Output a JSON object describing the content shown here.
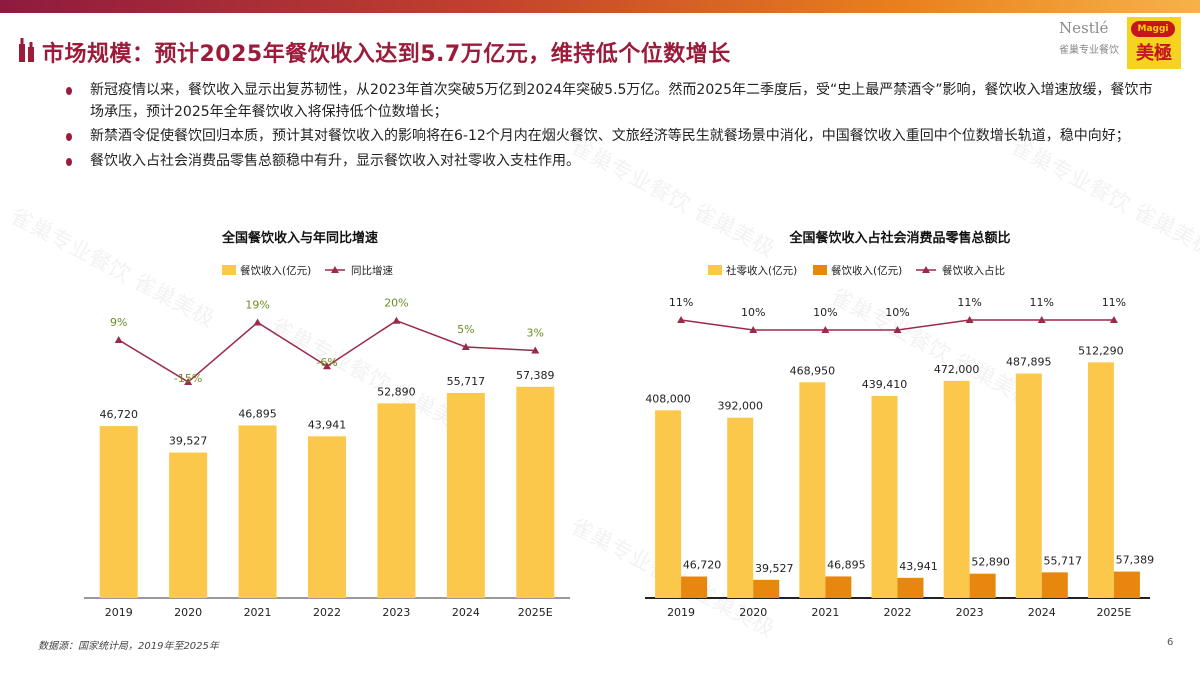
{
  "header": {
    "title": "市场规模：预计2025年餐饮收入达到5.7万亿元，维持低个位数增长",
    "logos": {
      "nestle": "Nestlé",
      "nestle_sub": "雀巢专业餐饮",
      "maggi": "Maggi",
      "maggi_cn": "美極"
    }
  },
  "bullets": [
    "新冠疫情以来，餐饮收入显示出复苏韧性，从2023年首次突破5万亿到2024年突破5.5万亿。然而2025年二季度后，受“史上最严禁酒令”影响，餐饮收入增速放缓，餐饮市场承压，预计2025年全年餐饮收入将保持低个位数增长；",
    "新禁酒令促使餐饮回归本质，预计其对餐饮收入的影响将在6-12个月内在烟火餐饮、文旅经济等民生就餐场景中消化，中国餐饮收入重回中个位数增长轨道，稳中向好；",
    "餐饮收入占社会消费品零售总额稳中有升，显示餐饮收入对社零收入支柱作用。"
  ],
  "watermark": "雀巢专业餐饮 雀巢美极",
  "footer": {
    "source": "数据源：国家统计局，2019年至2025年",
    "page": "6"
  },
  "colors": {
    "brand": "#9b1b3a",
    "bar_yellow": "#fcc84c",
    "bar_orange": "#e8870e",
    "line": "#9b2a4a"
  },
  "chart_data": [
    {
      "type": "bar+line",
      "title": "全国餐饮收入与年同比增速",
      "categories": [
        "2019",
        "2020",
        "2021",
        "2022",
        "2023",
        "2024",
        "2025E"
      ],
      "series": [
        {
          "name": "餐饮收入(亿元)",
          "type": "bar",
          "color": "#fcc84c",
          "values": [
            46720,
            39527,
            46895,
            43941,
            52890,
            55717,
            57389
          ],
          "labels": [
            "46,720",
            "39,527",
            "46,895",
            "43,941",
            "52,890",
            "55,717",
            "57,389"
          ]
        },
        {
          "name": "同比增速",
          "type": "line",
          "color": "#9b2a4a",
          "values": [
            9,
            -15,
            19,
            -6,
            20,
            5,
            3
          ],
          "labels": [
            "9%",
            "-15%",
            "19%",
            "-6%",
            "20%",
            "5%",
            "3%"
          ]
        }
      ],
      "legend": "top",
      "grid": false
    },
    {
      "type": "bar+line",
      "title": "全国餐饮收入占社会消费品零售总额比",
      "categories": [
        "2019",
        "2020",
        "2021",
        "2022",
        "2023",
        "2024",
        "2025E"
      ],
      "series": [
        {
          "name": "社零收入(亿元)",
          "type": "bar",
          "color": "#fcc84c",
          "values": [
            408000,
            392000,
            468950,
            439410,
            472000,
            487895,
            512290
          ],
          "labels": [
            "408,000",
            "392,000",
            "468,950",
            "439,410",
            "472,000",
            "487,895",
            "512,290"
          ]
        },
        {
          "name": "餐饮收入(亿元)",
          "type": "bar",
          "color": "#e8870e",
          "values": [
            46720,
            39527,
            46895,
            43941,
            52890,
            55717,
            57389
          ],
          "labels": [
            "46,720",
            "39,527",
            "46,895",
            "43,941",
            "52,890",
            "55,717",
            "57,389"
          ]
        },
        {
          "name": "餐饮收入占比",
          "type": "line",
          "color": "#9b2a4a",
          "values": [
            11,
            10,
            10,
            10,
            11,
            11,
            11
          ],
          "labels": [
            "11%",
            "10%",
            "10%",
            "10%",
            "11%",
            "11%",
            "11%"
          ]
        }
      ],
      "legend": "top",
      "grid": false
    }
  ]
}
